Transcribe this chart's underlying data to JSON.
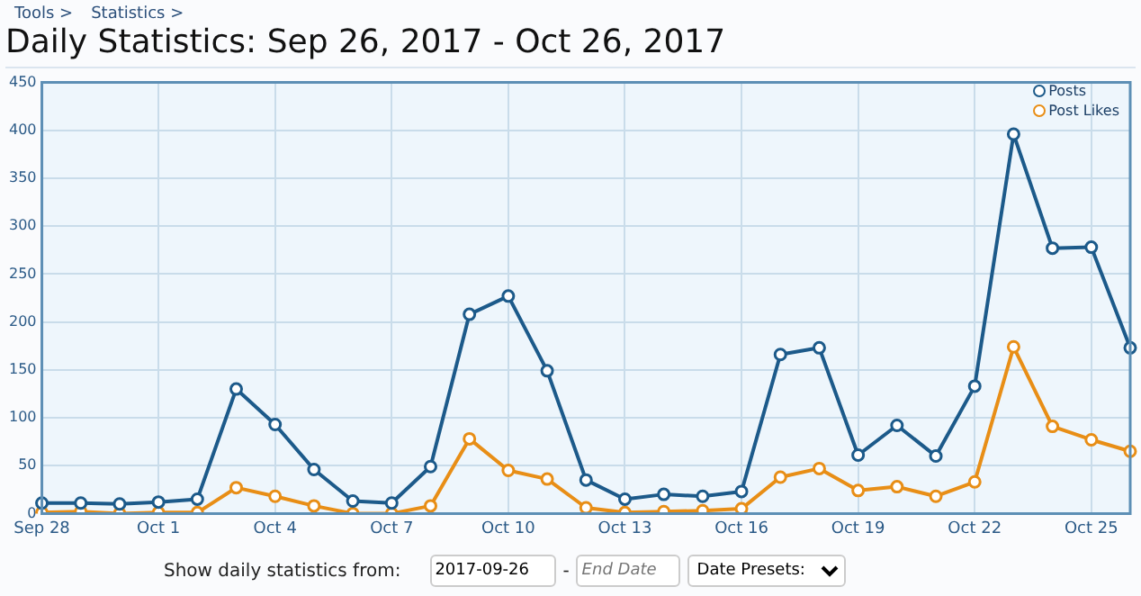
{
  "chart_data": {
    "type": "line",
    "title": "Daily Statistics: Sep 26, 2017 - Oct 26, 2017",
    "annotations": [
      "Tools >",
      "Statistics >",
      "Show daily statistics from:",
      "2017-09-26",
      "-",
      "End Date",
      "Date Presets:"
    ],
    "categories": [
      "Sep 28",
      null,
      null,
      "Oct 1",
      null,
      null,
      "Oct 4",
      null,
      null,
      "Oct 7",
      null,
      null,
      "Oct 10",
      null,
      null,
      "Oct 13",
      null,
      null,
      "Oct 16",
      null,
      null,
      "Oct 19",
      null,
      null,
      "Oct 22",
      null,
      null,
      "Oct 25",
      null
    ],
    "series": [
      {
        "name": "Posts",
        "color": "#1c5a8a",
        "values": [
          11,
          11,
          10,
          12,
          15,
          130,
          93,
          46,
          13,
          11,
          49,
          208,
          227,
          149,
          35,
          15,
          20,
          18,
          23,
          166,
          173,
          61,
          92,
          60,
          133,
          396,
          277,
          278,
          173
        ]
      },
      {
        "name": "Post Likes",
        "color": "#e88e16",
        "values": [
          1,
          2,
          0,
          1,
          1,
          27,
          18,
          8,
          0,
          0,
          8,
          78,
          45,
          36,
          6,
          1,
          2,
          3,
          5,
          38,
          47,
          24,
          28,
          18,
          33,
          174,
          91,
          77,
          65
        ]
      }
    ],
    "ylim": [
      0,
      450
    ],
    "yticks": [
      0,
      50,
      100,
      150,
      200,
      250,
      300,
      350,
      400,
      450
    ],
    "grid": true,
    "legend": "top right",
    "marker": "circle",
    "line_style": "solid"
  }
}
